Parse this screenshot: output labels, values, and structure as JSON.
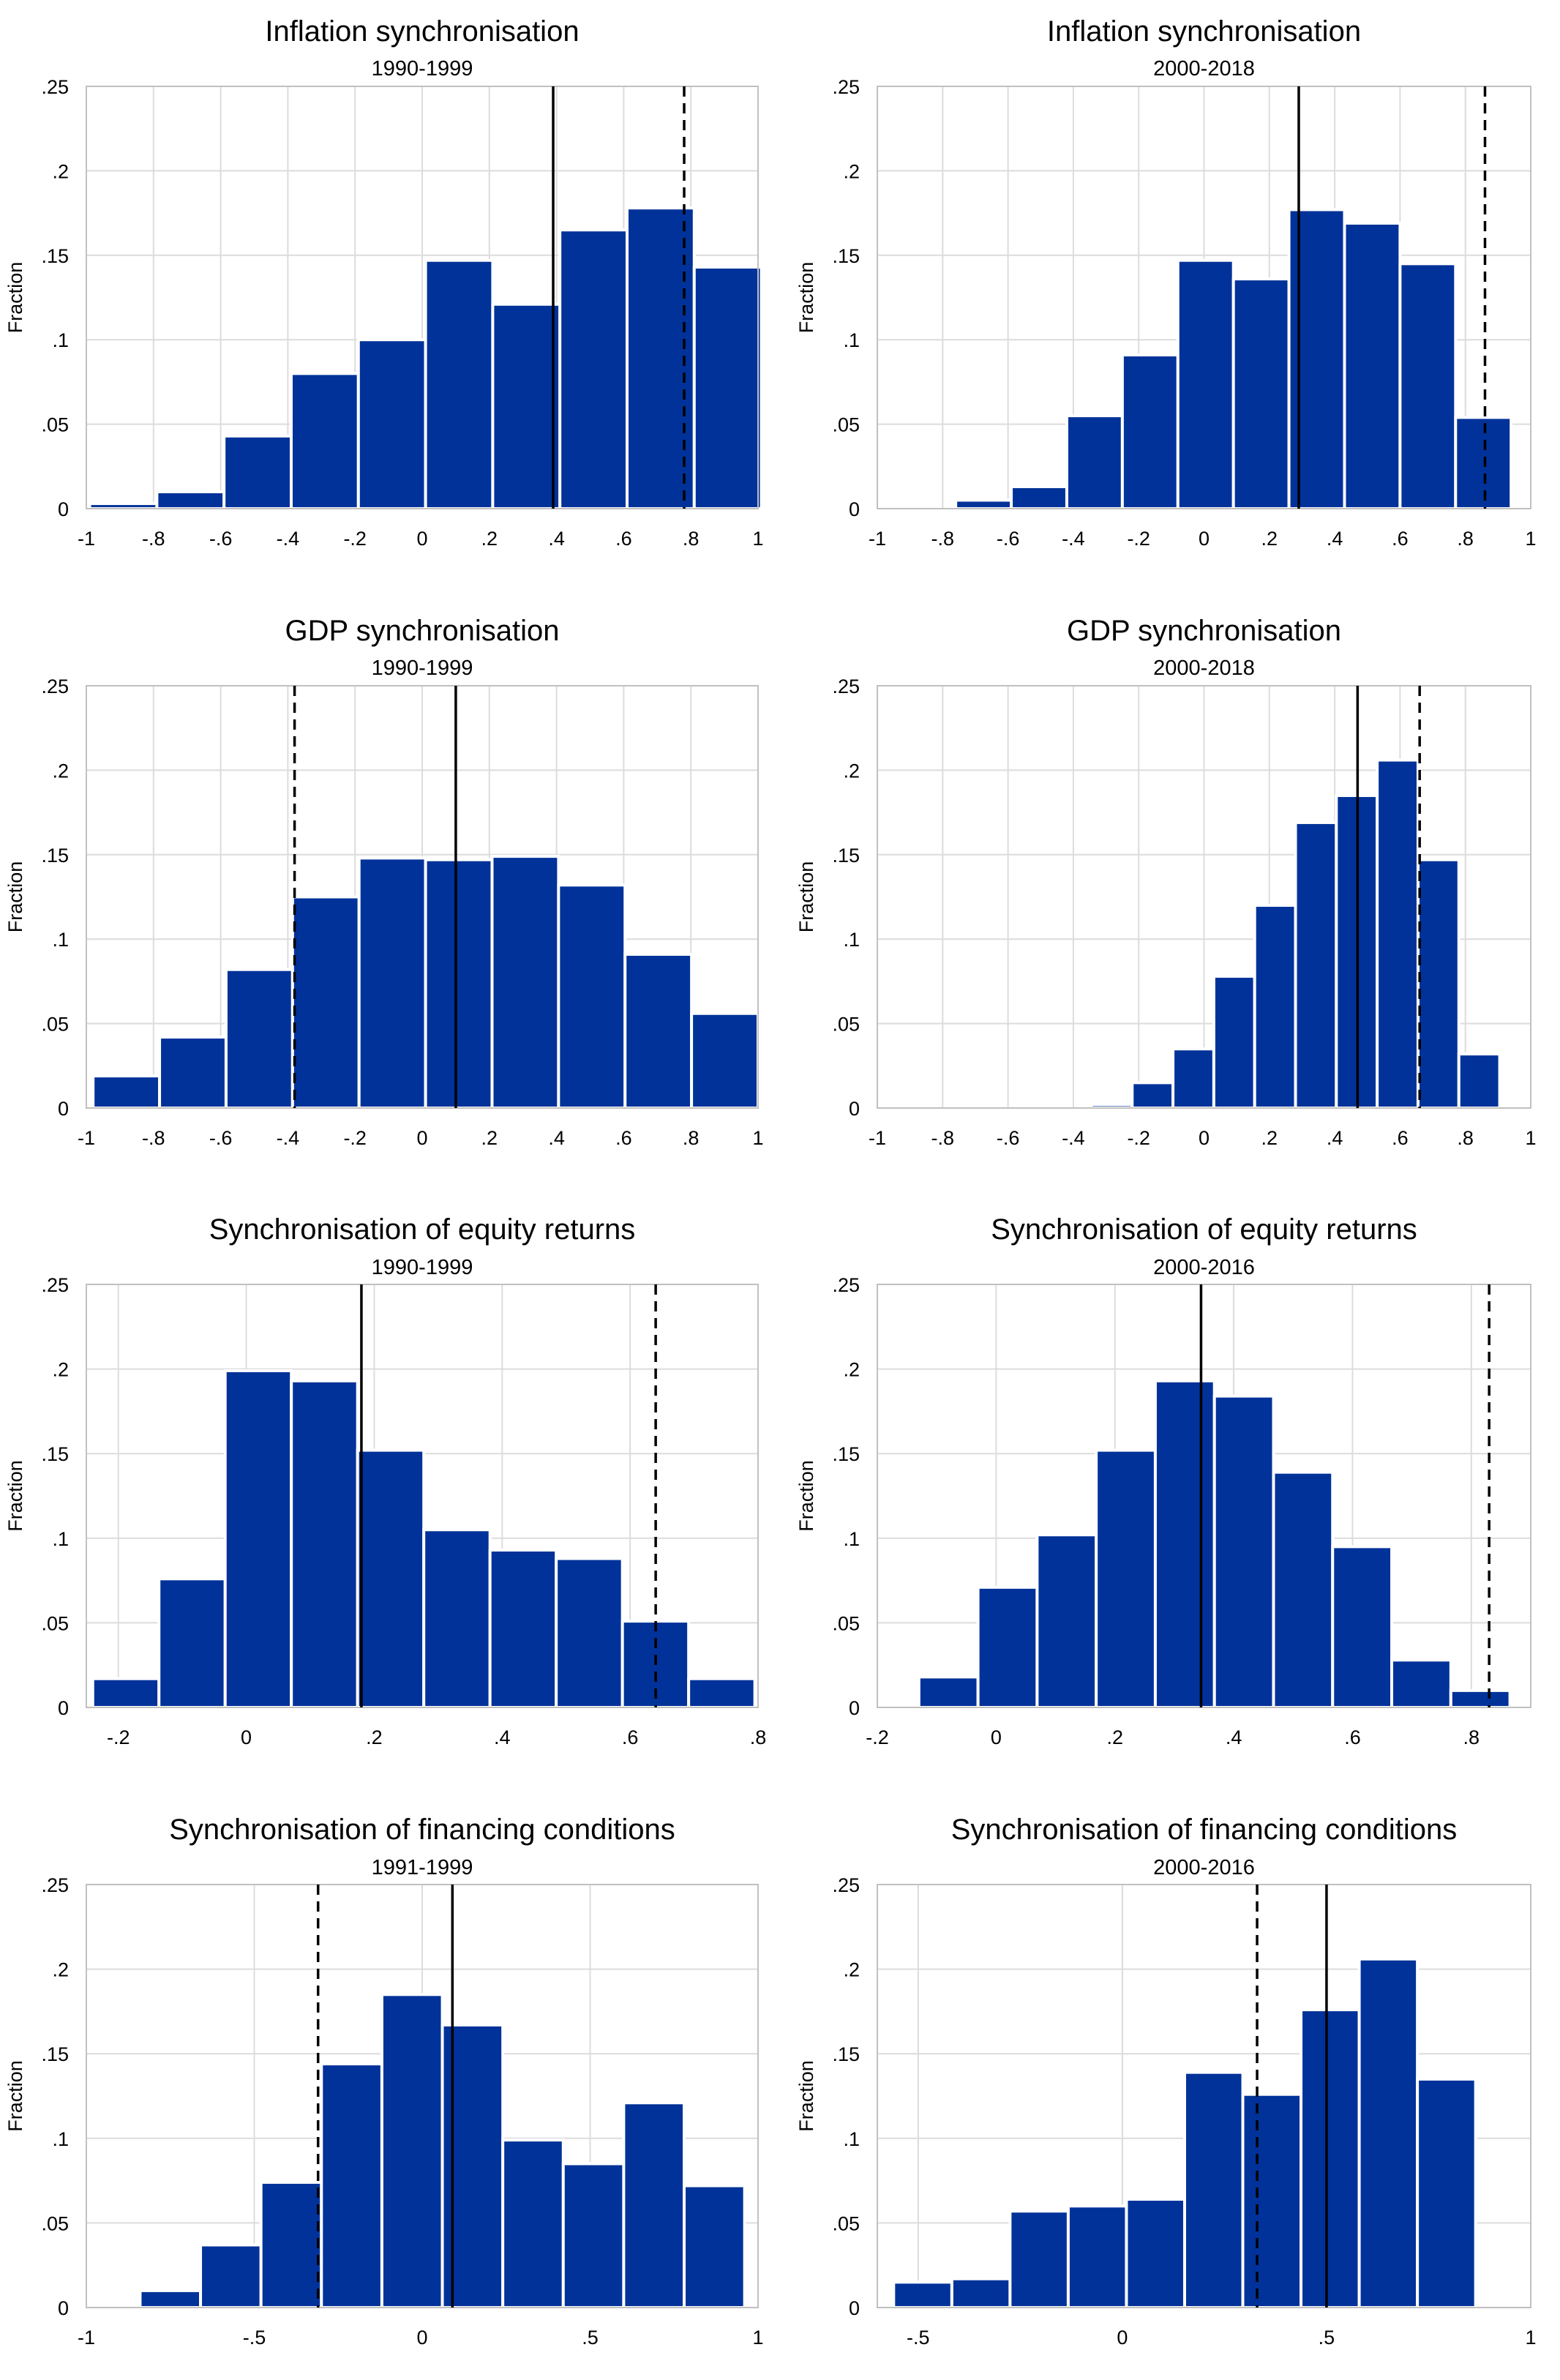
{
  "y_axis_label": "Fraction",
  "chart_data": [
    {
      "type": "bar",
      "title": "Inflation synchronisation",
      "subtitle": "1990-1999",
      "ylabel": "Fraction",
      "xlim": [
        -1,
        1
      ],
      "ylim": [
        0,
        0.25
      ],
      "xticks": [
        -1,
        -0.8,
        -0.6,
        -0.4,
        -0.2,
        0,
        0.2,
        0.4,
        0.6,
        0.8,
        1
      ],
      "xtick_labels": [
        "-1",
        "-.8",
        "-.6",
        "-.4",
        "-.2",
        "0",
        ".2",
        ".4",
        ".6",
        ".8",
        "1"
      ],
      "yticks": [
        0,
        0.05,
        0.1,
        0.15,
        0.2,
        0.25
      ],
      "ytick_labels": [
        "0",
        ".05",
        ".1",
        ".15",
        ".2",
        ".25"
      ],
      "grid": true,
      "bin_start": -0.99,
      "bin_width": 0.2,
      "values": [
        0.003,
        0.01,
        0.043,
        0.08,
        0.1,
        0.147,
        0.121,
        0.165,
        0.178,
        0.143
      ],
      "solid_line": 0.39,
      "dashed_line": 0.78
    },
    {
      "type": "bar",
      "title": "Inflation synchronisation",
      "subtitle": "2000-2018",
      "ylabel": "Fraction",
      "xlim": [
        -1,
        1
      ],
      "ylim": [
        0,
        0.25
      ],
      "xticks": [
        -1,
        -0.8,
        -0.6,
        -0.4,
        -0.2,
        0,
        0.2,
        0.4,
        0.6,
        0.8,
        1
      ],
      "xtick_labels": [
        "-1",
        "-.8",
        "-.6",
        "-.4",
        "-.2",
        "0",
        ".2",
        ".4",
        ".6",
        ".8",
        "1"
      ],
      "yticks": [
        0,
        0.05,
        0.1,
        0.15,
        0.2,
        0.25
      ],
      "ytick_labels": [
        "0",
        ".05",
        ".1",
        ".15",
        ".2",
        ".25"
      ],
      "grid": true,
      "bin_start": -0.76,
      "bin_width": 0.17,
      "values": [
        0.005,
        0.013,
        0.055,
        0.091,
        0.147,
        0.136,
        0.177,
        0.169,
        0.145,
        0.054
      ],
      "solid_line": 0.29,
      "dashed_line": 0.86
    },
    {
      "type": "bar",
      "title": "GDP synchronisation",
      "subtitle": "1990-1999",
      "ylabel": "Fraction",
      "xlim": [
        -1,
        1
      ],
      "ylim": [
        0,
        0.25
      ],
      "xticks": [
        -1,
        -0.8,
        -0.6,
        -0.4,
        -0.2,
        0,
        0.2,
        0.4,
        0.6,
        0.8,
        1
      ],
      "xtick_labels": [
        "-1",
        "-.8",
        "-.6",
        "-.4",
        "-.2",
        "0",
        ".2",
        ".4",
        ".6",
        ".8",
        "1"
      ],
      "yticks": [
        0,
        0.05,
        0.1,
        0.15,
        0.2,
        0.25
      ],
      "ytick_labels": [
        "0",
        ".05",
        ".1",
        ".15",
        ".2",
        ".25"
      ],
      "grid": true,
      "bin_start": -0.98,
      "bin_width": 0.198,
      "values": [
        0.019,
        0.042,
        0.082,
        0.125,
        0.148,
        0.147,
        0.149,
        0.132,
        0.091,
        0.056
      ],
      "solid_line": 0.1,
      "dashed_line": -0.38
    },
    {
      "type": "bar",
      "title": "GDP synchronisation",
      "subtitle": "2000-2018",
      "ylabel": "Fraction",
      "xlim": [
        -1,
        1
      ],
      "ylim": [
        0,
        0.25
      ],
      "xticks": [
        -1,
        -0.8,
        -0.6,
        -0.4,
        -0.2,
        0,
        0.2,
        0.4,
        0.6,
        0.8,
        1
      ],
      "xtick_labels": [
        "-1",
        "-.8",
        "-.6",
        "-.4",
        "-.2",
        "0",
        ".2",
        ".4",
        ".6",
        ".8",
        "1"
      ],
      "yticks": [
        0,
        0.05,
        0.1,
        0.15,
        0.2,
        0.25
      ],
      "ytick_labels": [
        "0",
        ".05",
        ".1",
        ".15",
        ".2",
        ".25"
      ],
      "grid": true,
      "bin_start": -0.345,
      "bin_width": 0.125,
      "values": [
        0.002,
        0.015,
        0.035,
        0.078,
        0.12,
        0.169,
        0.185,
        0.206,
        0.147,
        0.032
      ],
      "solid_line": 0.47,
      "dashed_line": 0.66
    },
    {
      "type": "bar",
      "title": "Synchronisation of equity returns",
      "subtitle": "1990-1999",
      "ylabel": "Fraction",
      "xlim": [
        -0.25,
        0.8
      ],
      "ylim": [
        0,
        0.25
      ],
      "xticks": [
        -0.2,
        0,
        0.2,
        0.4,
        0.6,
        0.8
      ],
      "xtick_labels": [
        "-.2",
        "0",
        ".2",
        ".4",
        ".6",
        ".8"
      ],
      "yticks": [
        0,
        0.05,
        0.1,
        0.15,
        0.2,
        0.25
      ],
      "ytick_labels": [
        "0",
        ".05",
        ".1",
        ".15",
        ".2",
        ".25"
      ],
      "grid": true,
      "bin_start": -0.24,
      "bin_width": 0.1035,
      "values": [
        0.017,
        0.076,
        0.199,
        0.193,
        0.152,
        0.105,
        0.093,
        0.088,
        0.051,
        0.017
      ],
      "solid_line": 0.18,
      "dashed_line": 0.64
    },
    {
      "type": "bar",
      "title": "Synchronisation of equity returns",
      "subtitle": "2000-2016",
      "ylabel": "Fraction",
      "xlim": [
        -0.2,
        0.9
      ],
      "ylim": [
        0,
        0.25
      ],
      "xticks": [
        -0.2,
        0,
        0.2,
        0.4,
        0.6,
        0.8
      ],
      "xtick_labels": [
        "-.2",
        "0",
        ".2",
        ".4",
        ".6",
        ".8"
      ],
      "yticks": [
        0,
        0.05,
        0.1,
        0.15,
        0.2,
        0.25
      ],
      "ytick_labels": [
        "0",
        ".05",
        ".1",
        ".15",
        ".2",
        ".25"
      ],
      "grid": true,
      "bin_start": -0.13,
      "bin_width": 0.0995,
      "values": [
        0.018,
        0.071,
        0.102,
        0.152,
        0.193,
        0.184,
        0.139,
        0.095,
        0.028,
        0.01
      ],
      "solid_line": 0.345,
      "dashed_line": 0.83
    },
    {
      "type": "bar",
      "title": "Synchronisation of financing conditions",
      "subtitle": "1991-1999",
      "ylabel": "Fraction",
      "xlim": [
        -1,
        1
      ],
      "ylim": [
        0,
        0.25
      ],
      "xticks": [
        -1,
        -0.5,
        0,
        0.5,
        1
      ],
      "xtick_labels": [
        "-1",
        "-.5",
        "0",
        ".5",
        "1"
      ],
      "yticks": [
        0,
        0.05,
        0.1,
        0.15,
        0.2,
        0.25
      ],
      "ytick_labels": [
        "0",
        ".05",
        ".1",
        ".15",
        ".2",
        ".25"
      ],
      "grid": true,
      "bin_start": -0.84,
      "bin_width": 0.18,
      "values": [
        0.01,
        0.037,
        0.074,
        0.144,
        0.185,
        0.167,
        0.099,
        0.085,
        0.121,
        0.072
      ],
      "solid_line": 0.09,
      "dashed_line": -0.31
    },
    {
      "type": "bar",
      "title": "Synchronisation of financing conditions",
      "subtitle": "2000-2016",
      "ylabel": "Fraction",
      "xlim": [
        -0.6,
        1.0
      ],
      "ylim": [
        0,
        0.25
      ],
      "xticks": [
        -0.5,
        0,
        0.5,
        1
      ],
      "xtick_labels": [
        "-.5",
        "0",
        ".5",
        "1"
      ],
      "yticks": [
        0,
        0.05,
        0.1,
        0.15,
        0.2,
        0.25
      ],
      "ytick_labels": [
        "0",
        ".05",
        ".1",
        ".15",
        ".2",
        ".25"
      ],
      "grid": true,
      "bin_start": -0.56,
      "bin_width": 0.1425,
      "values": [
        0.015,
        0.017,
        0.057,
        0.06,
        0.064,
        0.139,
        0.126,
        0.176,
        0.206,
        0.135
      ],
      "solid_line": 0.5,
      "dashed_line": 0.33
    }
  ]
}
